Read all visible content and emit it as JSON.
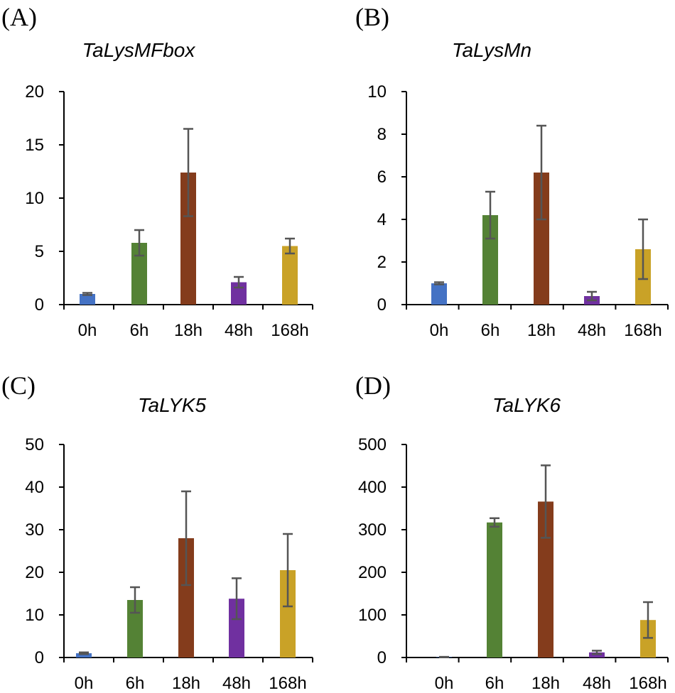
{
  "chart_data": [
    {
      "type": "bar",
      "panel_label": "(A)",
      "title": "TaLysMFbox",
      "categories": [
        "0h",
        "6h",
        "18h",
        "48h",
        "168h"
      ],
      "values": [
        1.0,
        5.8,
        12.4,
        2.1,
        5.5
      ],
      "errors": [
        0.1,
        1.2,
        4.1,
        0.5,
        0.7
      ],
      "colors": [
        "#4472C4",
        "#548235",
        "#843C1C",
        "#7030A0",
        "#C9A227"
      ],
      "ylim": [
        0,
        20
      ],
      "yticks": [
        "0",
        "5",
        "10",
        "15",
        "20"
      ],
      "grid": false
    },
    {
      "type": "bar",
      "panel_label": "(B)",
      "title": "TaLysMn",
      "categories": [
        "0h",
        "6h",
        "18h",
        "48h",
        "168h"
      ],
      "values": [
        1.0,
        4.2,
        6.2,
        0.4,
        2.6
      ],
      "errors": [
        0.05,
        1.1,
        2.2,
        0.2,
        1.4
      ],
      "colors": [
        "#4472C4",
        "#548235",
        "#843C1C",
        "#7030A0",
        "#C9A227"
      ],
      "ylim": [
        0,
        10
      ],
      "yticks": [
        "0",
        "2",
        "4",
        "6",
        "8",
        "10"
      ],
      "grid": false
    },
    {
      "type": "bar",
      "panel_label": "(C)",
      "title": "TaLYK5",
      "categories": [
        "0h",
        "6h",
        "18h",
        "48h",
        "168h"
      ],
      "values": [
        1.0,
        13.5,
        28.0,
        13.8,
        20.5
      ],
      "errors": [
        0.2,
        3.0,
        11.0,
        4.8,
        8.5
      ],
      "colors": [
        "#4472C4",
        "#548235",
        "#843C1C",
        "#7030A0",
        "#C9A227"
      ],
      "ylim": [
        0,
        50
      ],
      "yticks": [
        "0",
        "10",
        "20",
        "30",
        "40",
        "50"
      ],
      "grid": false
    },
    {
      "type": "bar",
      "panel_label": "(D)",
      "title": "TaLYK6",
      "categories": [
        "0h",
        "6h",
        "18h",
        "48h",
        "168h"
      ],
      "values": [
        1.0,
        317,
        366,
        12,
        88
      ],
      "errors": [
        0.5,
        10,
        85,
        4,
        42
      ],
      "colors": [
        "#4472C4",
        "#548235",
        "#843C1C",
        "#7030A0",
        "#C9A227"
      ],
      "ylim": [
        0,
        500
      ],
      "yticks": [
        "0",
        "100",
        "200",
        "300",
        "400",
        "500"
      ],
      "grid": false
    }
  ]
}
